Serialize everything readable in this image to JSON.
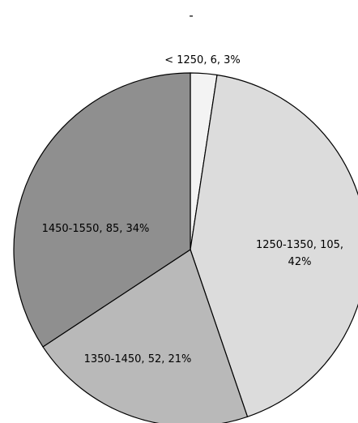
{
  "chart_data": {
    "type": "pie",
    "title": "-",
    "slices": [
      {
        "label": "< 1250",
        "value": 6,
        "percent": "3%",
        "color": "#f3f3f3",
        "text_lines": [
          "< 1250, 6, 3%"
        ]
      },
      {
        "label": "1250-1350",
        "value": 105,
        "percent": "42%",
        "color": "#dcdcdc",
        "text_lines": [
          "1250-1350, 105,",
          "42%"
        ]
      },
      {
        "label": "1350-1450",
        "value": 52,
        "percent": "21%",
        "color": "#b9b9b9",
        "text_lines": [
          "1350-1450, 52, 21%"
        ]
      },
      {
        "label": "1450-1550",
        "value": 85,
        "percent": "34%",
        "color": "#8f8f8f",
        "text_lines": [
          "1450-1550, 85, 34%"
        ]
      }
    ],
    "start_angle_deg": 0,
    "direction": "clockwise",
    "legend": "none",
    "data_labels": "category, value, percent"
  }
}
